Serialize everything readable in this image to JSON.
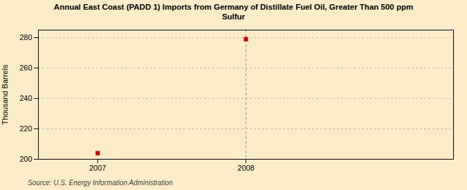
{
  "chart_data": {
    "type": "scatter",
    "title": "Annual East Coast (PADD 1) Imports from Germany of Distillate Fuel Oil, Greater Than 500 ppm\nSulfur",
    "ylabel": "Thousand Barrels",
    "source": "Source: U.S. Energy Information Administration",
    "x": [
      2007,
      2008
    ],
    "values": [
      204,
      279
    ],
    "color": "#cc0000",
    "marker": "square",
    "background_color": "#faecc8",
    "vline": {
      "x": 2008,
      "color": "#999999",
      "line_style": "dashed"
    },
    "xlim": [
      2006.6,
      2009.4
    ],
    "xticks": [
      2007,
      2008
    ],
    "ylim": [
      200,
      285
    ],
    "yticks": [
      200,
      220,
      240,
      260,
      280
    ],
    "grid": true
  }
}
